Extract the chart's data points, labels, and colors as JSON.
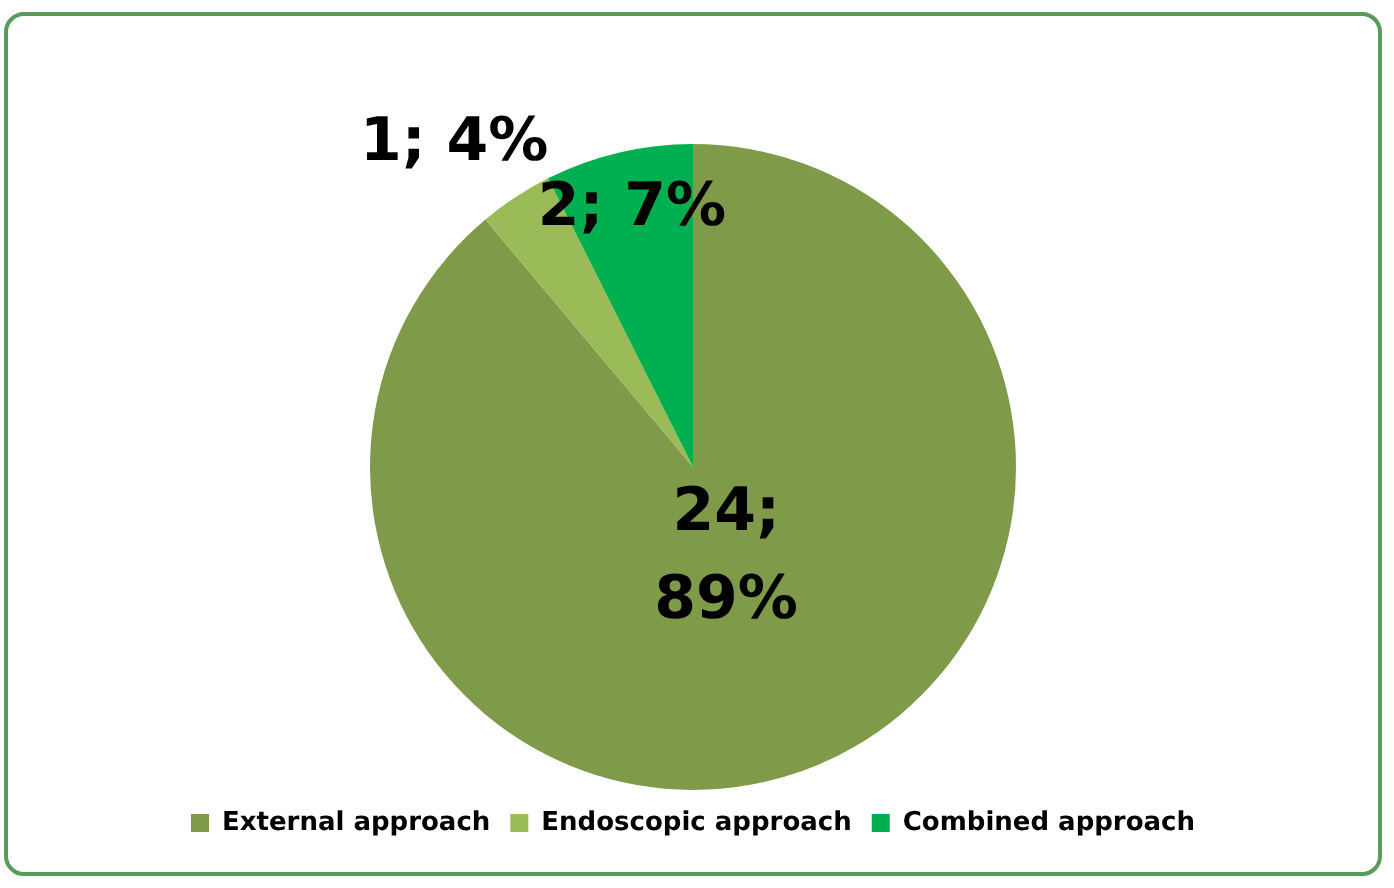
{
  "chart_data": {
    "type": "pie",
    "categories": [
      "External approach",
      "Endoscopic approach",
      "Combined approach"
    ],
    "values": [
      24,
      1,
      2
    ],
    "colors": [
      "#7f9a48",
      "#9bbb59",
      "#00b050"
    ],
    "value_labels": [
      "24;\n89%",
      "1; 4%",
      "2; 7%"
    ],
    "legend": "bottom"
  }
}
